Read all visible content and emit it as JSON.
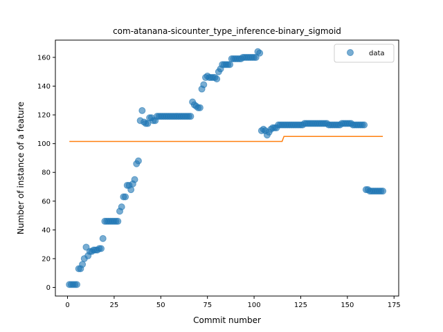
{
  "chart_data": {
    "type": "scatter",
    "title": "com-atanana-sicounter_type_inference-binary_sigmoid",
    "xlabel": "Commit number",
    "ylabel": "Number of instance of a feature",
    "xlim": [
      -6.5,
      177.5
    ],
    "ylim": [
      -6,
      172
    ],
    "xticks": [
      0,
      25,
      50,
      75,
      100,
      125,
      150,
      175
    ],
    "yticks": [
      0,
      20,
      40,
      60,
      80,
      100,
      120,
      140,
      160
    ],
    "grid": false,
    "legend": {
      "position": "top-right",
      "entries": [
        "data"
      ]
    },
    "colors": {
      "data": "#1f77b4",
      "fit": "#ff7f0e"
    },
    "series": [
      {
        "name": "data",
        "kind": "scatter",
        "x": [
          1,
          2,
          3,
          4,
          5,
          6,
          7,
          8,
          9,
          10,
          11,
          12,
          13,
          14,
          15,
          16,
          17,
          18,
          19,
          20,
          21,
          22,
          23,
          24,
          25,
          26,
          27,
          28,
          29,
          30,
          31,
          32,
          33,
          34,
          35,
          36,
          37,
          38,
          39,
          40,
          41,
          42,
          43,
          44,
          45,
          46,
          47,
          48,
          49,
          50,
          51,
          52,
          53,
          54,
          55,
          56,
          57,
          58,
          59,
          60,
          61,
          62,
          63,
          64,
          65,
          66,
          67,
          68,
          69,
          70,
          71,
          72,
          73,
          74,
          75,
          76,
          77,
          78,
          79,
          80,
          81,
          82,
          83,
          84,
          85,
          86,
          87,
          88,
          89,
          90,
          91,
          92,
          93,
          94,
          95,
          96,
          97,
          98,
          99,
          100,
          101,
          102,
          103,
          104,
          105,
          106,
          107,
          108,
          109,
          110,
          111,
          112,
          113,
          114,
          115,
          116,
          117,
          118,
          119,
          120,
          121,
          122,
          123,
          124,
          125,
          126,
          127,
          128,
          129,
          130,
          131,
          132,
          133,
          134,
          135,
          136,
          137,
          138,
          139,
          140,
          141,
          142,
          143,
          144,
          145,
          146,
          147,
          148,
          149,
          150,
          151,
          152,
          153,
          154,
          155,
          156,
          157,
          158,
          159,
          160,
          161,
          162,
          163,
          164,
          165,
          166,
          167,
          168,
          169
        ],
        "y": [
          2,
          2,
          2,
          2,
          2,
          13,
          13,
          16,
          20,
          28,
          22,
          25,
          25,
          26,
          26,
          26,
          27,
          27,
          34,
          46,
          46,
          46,
          46,
          46,
          46,
          46,
          46,
          53,
          56,
          63,
          63,
          71,
          71,
          68,
          72,
          75,
          86,
          88,
          116,
          123,
          115,
          114,
          114,
          118,
          118,
          116,
          116,
          119,
          119,
          119,
          119,
          119,
          119,
          119,
          119,
          119,
          119,
          119,
          119,
          119,
          119,
          119,
          119,
          119,
          119,
          119,
          129,
          127,
          126,
          125,
          125,
          138,
          141,
          146,
          147,
          146,
          146,
          146,
          146,
          145,
          150,
          152,
          155,
          155,
          155,
          155,
          155,
          159,
          159,
          159,
          159,
          159,
          159,
          160,
          160,
          160,
          160,
          160,
          160,
          160,
          160,
          164,
          163,
          109,
          110,
          109,
          106,
          108,
          110,
          111,
          111,
          111,
          113,
          113,
          113,
          113,
          113,
          113,
          113,
          113,
          113,
          113,
          113,
          113,
          113,
          113,
          114,
          114,
          114,
          114,
          114,
          114,
          114,
          114,
          114,
          114,
          114,
          114,
          114,
          113,
          113,
          113,
          113,
          113,
          113,
          113,
          114,
          114,
          114,
          114,
          114,
          114,
          113,
          113,
          113,
          113,
          113,
          113,
          113,
          68,
          68,
          67,
          67,
          67,
          67,
          67,
          67,
          67,
          67
        ]
      },
      {
        "name": "",
        "kind": "line",
        "x": [
          1,
          115,
          116,
          169
        ],
        "y": [
          101.5,
          101.5,
          105,
          105
        ]
      }
    ]
  }
}
